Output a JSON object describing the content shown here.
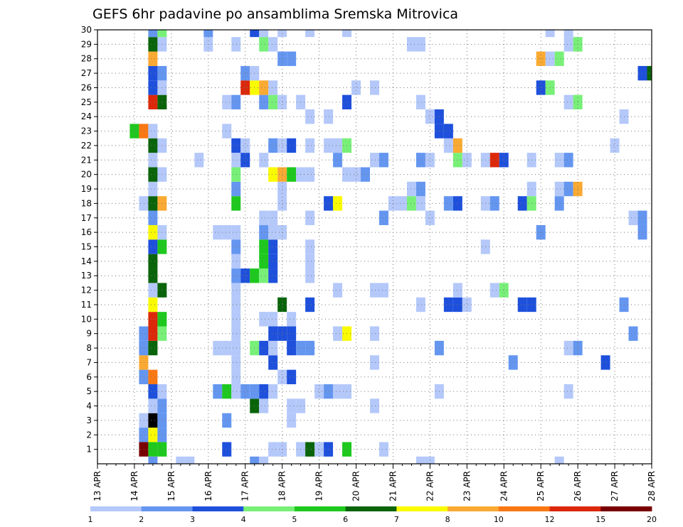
{
  "chart_data": {
    "type": "heatmap",
    "title": "GEFS 6hr padavine po ansamblima Sremska Mitrovica",
    "x_ticks": [
      "13 APR",
      "14 APR",
      "15 APR",
      "16 APR",
      "17 APR",
      "18 APR",
      "19 APR",
      "20 APR",
      "21 APR",
      "22 APR",
      "23 APR",
      "24 APR",
      "25 APR",
      "26 APR",
      "27 APR",
      "28 APR"
    ],
    "y_ticks": [
      "1",
      "2",
      "3",
      "4",
      "5",
      "6",
      "7",
      "8",
      "9",
      "10",
      "11",
      "12",
      "13",
      "14",
      "15",
      "16",
      "17",
      "18",
      "19",
      "20",
      "21",
      "22",
      "23",
      "24",
      "25",
      "26",
      "27",
      "28",
      "29",
      "30"
    ],
    "xlim": [
      0,
      60
    ],
    "ylim": [
      0,
      30
    ],
    "x_step": "6hr",
    "grid": true,
    "legend": {
      "position": "bottom",
      "boundaries": [
        "1",
        "2",
        "3",
        "4",
        "5",
        "6",
        "7",
        "8",
        "10",
        "12",
        "15",
        "20"
      ],
      "colors": [
        "#b4c8fa",
        "#6496f0",
        "#1e50dc",
        "#78f078",
        "#1ec81e",
        "#0a640a",
        "#fafa00",
        "#faaa32",
        "#fa7814",
        "#dc280a",
        "#780000"
      ]
    },
    "cells": [
      [
        5,
        1,
        10
      ],
      [
        6,
        1,
        4
      ],
      [
        7,
        1,
        4
      ],
      [
        14,
        1,
        2
      ],
      [
        19,
        1,
        0
      ],
      [
        20,
        1,
        0
      ],
      [
        22,
        1,
        0
      ],
      [
        23,
        1,
        5
      ],
      [
        24,
        1,
        0
      ],
      [
        25,
        1,
        2
      ],
      [
        27,
        1,
        4
      ],
      [
        31,
        1,
        0
      ],
      [
        5,
        2,
        1
      ],
      [
        6,
        2,
        6
      ],
      [
        7,
        2,
        1
      ],
      [
        5,
        3,
        0
      ],
      [
        6,
        3,
        11
      ],
      [
        7,
        3,
        1
      ],
      [
        14,
        3,
        1
      ],
      [
        21,
        3,
        0
      ],
      [
        6,
        4,
        0
      ],
      [
        7,
        4,
        1
      ],
      [
        17,
        4,
        5
      ],
      [
        18,
        4,
        0
      ],
      [
        21,
        4,
        0
      ],
      [
        22,
        4,
        0
      ],
      [
        30,
        4,
        0
      ],
      [
        6,
        5,
        2
      ],
      [
        7,
        5,
        0
      ],
      [
        13,
        5,
        1
      ],
      [
        14,
        5,
        4
      ],
      [
        15,
        5,
        0
      ],
      [
        16,
        5,
        1
      ],
      [
        17,
        5,
        1
      ],
      [
        18,
        5,
        2
      ],
      [
        19,
        5,
        0
      ],
      [
        24,
        5,
        0
      ],
      [
        25,
        5,
        1
      ],
      [
        26,
        5,
        0
      ],
      [
        27,
        5,
        0
      ],
      [
        37,
        5,
        0
      ],
      [
        51,
        5,
        0
      ],
      [
        5,
        6,
        1
      ],
      [
        6,
        6,
        8
      ],
      [
        15,
        6,
        0
      ],
      [
        20,
        6,
        0
      ],
      [
        21,
        6,
        2
      ],
      [
        5,
        7,
        7
      ],
      [
        15,
        7,
        0
      ],
      [
        19,
        7,
        2
      ],
      [
        30,
        7,
        0
      ],
      [
        45,
        7,
        1
      ],
      [
        55,
        7,
        2
      ],
      [
        5,
        8,
        1
      ],
      [
        6,
        8,
        5
      ],
      [
        13,
        8,
        0
      ],
      [
        14,
        8,
        0
      ],
      [
        15,
        8,
        0
      ],
      [
        17,
        8,
        3
      ],
      [
        18,
        8,
        2
      ],
      [
        19,
        8,
        0
      ],
      [
        21,
        8,
        2
      ],
      [
        22,
        8,
        1
      ],
      [
        23,
        8,
        1
      ],
      [
        37,
        8,
        1
      ],
      [
        51,
        8,
        0
      ],
      [
        52,
        8,
        1
      ],
      [
        5,
        9,
        1
      ],
      [
        6,
        9,
        9
      ],
      [
        7,
        9,
        3
      ],
      [
        15,
        9,
        0
      ],
      [
        19,
        9,
        2
      ],
      [
        20,
        9,
        2
      ],
      [
        21,
        9,
        2
      ],
      [
        26,
        9,
        0
      ],
      [
        27,
        9,
        6
      ],
      [
        30,
        9,
        0
      ],
      [
        58,
        9,
        1
      ],
      [
        6,
        10,
        9
      ],
      [
        7,
        10,
        4
      ],
      [
        15,
        10,
        0
      ],
      [
        18,
        10,
        0
      ],
      [
        19,
        10,
        0
      ],
      [
        21,
        10,
        0
      ],
      [
        6,
        11,
        6
      ],
      [
        15,
        11,
        0
      ],
      [
        20,
        11,
        5
      ],
      [
        23,
        11,
        2
      ],
      [
        35,
        11,
        0
      ],
      [
        38,
        11,
        2
      ],
      [
        39,
        11,
        2
      ],
      [
        40,
        11,
        0
      ],
      [
        46,
        11,
        2
      ],
      [
        47,
        11,
        2
      ],
      [
        57,
        11,
        1
      ],
      [
        6,
        12,
        0
      ],
      [
        7,
        12,
        5
      ],
      [
        15,
        12,
        0
      ],
      [
        26,
        12,
        0
      ],
      [
        30,
        12,
        0
      ],
      [
        31,
        12,
        0
      ],
      [
        39,
        12,
        0
      ],
      [
        43,
        12,
        0
      ],
      [
        44,
        12,
        3
      ],
      [
        6,
        13,
        5
      ],
      [
        15,
        13,
        1
      ],
      [
        16,
        13,
        2
      ],
      [
        17,
        13,
        4
      ],
      [
        18,
        13,
        3
      ],
      [
        19,
        13,
        2
      ],
      [
        23,
        13,
        0
      ],
      [
        6,
        14,
        5
      ],
      [
        15,
        14,
        0
      ],
      [
        18,
        14,
        4
      ],
      [
        19,
        14,
        2
      ],
      [
        23,
        14,
        0
      ],
      [
        6,
        15,
        2
      ],
      [
        7,
        15,
        4
      ],
      [
        15,
        15,
        1
      ],
      [
        18,
        15,
        4
      ],
      [
        19,
        15,
        2
      ],
      [
        23,
        15,
        0
      ],
      [
        42,
        15,
        0
      ],
      [
        6,
        16,
        6
      ],
      [
        7,
        16,
        0
      ],
      [
        13,
        16,
        0
      ],
      [
        14,
        16,
        0
      ],
      [
        15,
        16,
        0
      ],
      [
        18,
        16,
        1
      ],
      [
        19,
        16,
        0
      ],
      [
        20,
        16,
        0
      ],
      [
        48,
        16,
        1
      ],
      [
        59,
        16,
        1
      ],
      [
        6,
        17,
        1
      ],
      [
        18,
        17,
        0
      ],
      [
        19,
        17,
        0
      ],
      [
        23,
        17,
        0
      ],
      [
        31,
        17,
        1
      ],
      [
        36,
        17,
        0
      ],
      [
        58,
        17,
        0
      ],
      [
        59,
        17,
        1
      ],
      [
        5,
        18,
        0
      ],
      [
        6,
        18,
        5
      ],
      [
        7,
        18,
        7
      ],
      [
        15,
        18,
        4
      ],
      [
        20,
        18,
        0
      ],
      [
        25,
        18,
        2
      ],
      [
        26,
        18,
        6
      ],
      [
        32,
        18,
        0
      ],
      [
        33,
        18,
        0
      ],
      [
        34,
        18,
        3
      ],
      [
        35,
        18,
        0
      ],
      [
        38,
        18,
        1
      ],
      [
        39,
        18,
        2
      ],
      [
        42,
        18,
        0
      ],
      [
        43,
        18,
        1
      ],
      [
        46,
        18,
        2
      ],
      [
        47,
        18,
        3
      ],
      [
        50,
        18,
        1
      ],
      [
        6,
        19,
        0
      ],
      [
        15,
        19,
        1
      ],
      [
        20,
        19,
        0
      ],
      [
        34,
        19,
        0
      ],
      [
        35,
        19,
        1
      ],
      [
        47,
        19,
        0
      ],
      [
        50,
        19,
        0
      ],
      [
        51,
        19,
        1
      ],
      [
        52,
        19,
        7
      ],
      [
        6,
        20,
        5
      ],
      [
        7,
        20,
        0
      ],
      [
        15,
        20,
        3
      ],
      [
        19,
        20,
        6
      ],
      [
        20,
        20,
        7
      ],
      [
        21,
        20,
        4
      ],
      [
        22,
        20,
        0
      ],
      [
        23,
        20,
        0
      ],
      [
        27,
        20,
        0
      ],
      [
        28,
        20,
        0
      ],
      [
        29,
        20,
        1
      ],
      [
        6,
        21,
        0
      ],
      [
        11,
        21,
        0
      ],
      [
        15,
        21,
        0
      ],
      [
        16,
        21,
        2
      ],
      [
        18,
        21,
        0
      ],
      [
        26,
        21,
        1
      ],
      [
        30,
        21,
        0
      ],
      [
        31,
        21,
        1
      ],
      [
        35,
        21,
        1
      ],
      [
        36,
        21,
        0
      ],
      [
        39,
        21,
        3
      ],
      [
        40,
        21,
        0
      ],
      [
        42,
        21,
        0
      ],
      [
        43,
        21,
        9
      ],
      [
        44,
        21,
        2
      ],
      [
        47,
        21,
        0
      ],
      [
        50,
        21,
        0
      ],
      [
        51,
        21,
        1
      ],
      [
        6,
        22,
        5
      ],
      [
        7,
        22,
        0
      ],
      [
        15,
        22,
        2
      ],
      [
        16,
        22,
        0
      ],
      [
        19,
        22,
        1
      ],
      [
        20,
        22,
        0
      ],
      [
        21,
        22,
        2
      ],
      [
        23,
        22,
        0
      ],
      [
        25,
        22,
        0
      ],
      [
        26,
        22,
        0
      ],
      [
        27,
        22,
        3
      ],
      [
        38,
        22,
        0
      ],
      [
        39,
        22,
        7
      ],
      [
        56,
        22,
        0
      ],
      [
        4,
        23,
        4
      ],
      [
        5,
        23,
        8
      ],
      [
        6,
        23,
        0
      ],
      [
        14,
        23,
        0
      ],
      [
        37,
        23,
        2
      ],
      [
        38,
        23,
        2
      ],
      [
        23,
        24,
        0
      ],
      [
        25,
        24,
        0
      ],
      [
        36,
        24,
        0
      ],
      [
        37,
        24,
        2
      ],
      [
        57,
        24,
        0
      ],
      [
        6,
        25,
        9
      ],
      [
        7,
        25,
        5
      ],
      [
        14,
        25,
        0
      ],
      [
        15,
        25,
        1
      ],
      [
        18,
        25,
        1
      ],
      [
        19,
        25,
        3
      ],
      [
        20,
        25,
        0
      ],
      [
        22,
        25,
        0
      ],
      [
        27,
        25,
        2
      ],
      [
        35,
        25,
        0
      ],
      [
        51,
        25,
        0
      ],
      [
        52,
        25,
        3
      ],
      [
        6,
        26,
        2
      ],
      [
        7,
        26,
        0
      ],
      [
        16,
        26,
        9
      ],
      [
        17,
        26,
        6
      ],
      [
        18,
        26,
        7
      ],
      [
        19,
        26,
        0
      ],
      [
        28,
        26,
        0
      ],
      [
        30,
        26,
        0
      ],
      [
        48,
        26,
        2
      ],
      [
        49,
        26,
        3
      ],
      [
        6,
        27,
        2
      ],
      [
        7,
        27,
        1
      ],
      [
        16,
        27,
        1
      ],
      [
        17,
        27,
        0
      ],
      [
        59,
        27,
        2
      ],
      [
        60,
        27,
        5
      ],
      [
        6,
        28,
        7
      ],
      [
        20,
        28,
        1
      ],
      [
        21,
        28,
        1
      ],
      [
        48,
        28,
        7
      ],
      [
        49,
        28,
        0
      ],
      [
        50,
        28,
        3
      ],
      [
        6,
        29,
        5
      ],
      [
        7,
        29,
        0
      ],
      [
        12,
        29,
        0
      ],
      [
        15,
        29,
        0
      ],
      [
        18,
        29,
        3
      ],
      [
        19,
        29,
        0
      ],
      [
        34,
        29,
        0
      ],
      [
        35,
        29,
        0
      ],
      [
        51,
        29,
        0
      ],
      [
        52,
        29,
        3
      ],
      [
        6,
        30,
        1
      ],
      [
        7,
        30,
        3
      ],
      [
        12,
        30,
        1
      ],
      [
        17,
        30,
        2
      ],
      [
        18,
        30,
        0
      ],
      [
        20,
        30,
        0
      ],
      [
        23,
        30,
        0
      ],
      [
        27,
        30,
        0
      ],
      [
        49,
        30,
        0
      ],
      [
        51,
        30,
        0
      ],
      [
        6,
        0,
        1
      ],
      [
        9,
        0,
        0
      ],
      [
        10,
        0,
        0
      ],
      [
        17,
        0,
        1
      ],
      [
        18,
        0,
        0
      ],
      [
        35,
        0,
        0
      ],
      [
        36,
        0,
        0
      ],
      [
        50,
        0,
        0
      ]
    ]
  }
}
